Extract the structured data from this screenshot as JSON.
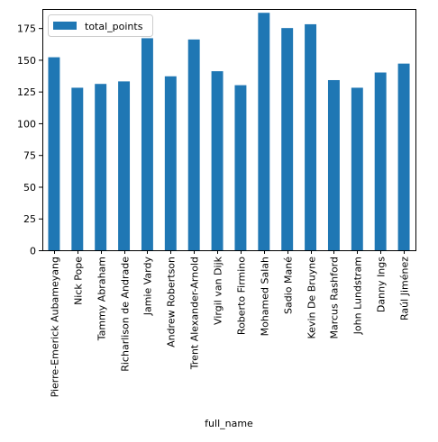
{
  "chart_data": {
    "type": "bar",
    "title": "",
    "xlabel": "full_name",
    "ylabel": "",
    "ylim": [
      0,
      190
    ],
    "yticks": [
      0,
      25,
      50,
      75,
      100,
      125,
      150,
      175
    ],
    "grid": false,
    "legend_position": "top-left",
    "bar_color": "#1f77b4",
    "categories": [
      "Pierre-Emerick Aubameyang",
      "Nick Pope",
      "Tammy Abraham",
      "Richarlison de Andrade",
      "Jamie Vardy",
      "Andrew Robertson",
      "Trent Alexander-Arnold",
      "Virgil van Dijk",
      "Roberto Firmino",
      "Mohamed Salah",
      "Sadio Mané",
      "Kevin De Bruyne",
      "Marcus Rashford",
      "John Lundstram",
      "Danny Ings",
      "Raúl Jiménez"
    ],
    "series": [
      {
        "name": "total_points",
        "values": [
          152,
          128,
          131,
          133,
          167,
          137,
          166,
          141,
          130,
          187,
          175,
          178,
          134,
          128,
          140,
          147
        ]
      }
    ]
  }
}
